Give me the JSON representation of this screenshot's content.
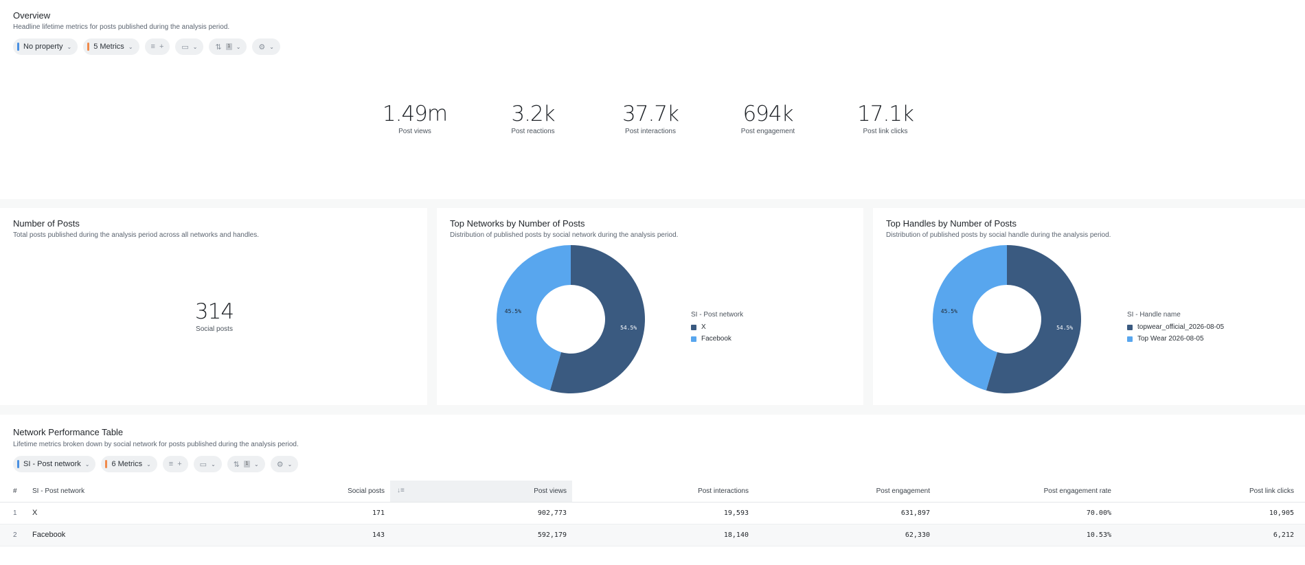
{
  "overview": {
    "title": "Overview",
    "subtitle": "Headline lifetime metrics for posts published during the analysis period.",
    "toolbar": {
      "property_label": "No property",
      "metrics_label": "5 Metrics",
      "plus": "+"
    },
    "kpis": [
      {
        "value": "1.49m",
        "label": "Post views"
      },
      {
        "value": "3.2k",
        "label": "Post reactions"
      },
      {
        "value": "37.7k",
        "label": "Post interactions"
      },
      {
        "value": "694k",
        "label": "Post engagement"
      },
      {
        "value": "17.1k",
        "label": "Post link clicks"
      }
    ]
  },
  "posts_card": {
    "title": "Number of Posts",
    "subtitle": "Total posts published during the analysis period across all networks and handles.",
    "value": "314",
    "label": "Social posts"
  },
  "networks_card": {
    "title": "Top Networks by Number of Posts",
    "subtitle": "Distribution of published posts by social network during the analysis period.",
    "legend_title": "SI - Post network",
    "legend": [
      "X",
      "Facebook"
    ]
  },
  "handles_card": {
    "title": "Top Handles by Number of Posts",
    "subtitle": "Distribution of published posts by social handle during the analysis period.",
    "legend_title": "SI - Handle name",
    "legend": [
      "topwear_official_2026-08-05",
      "Top Wear 2026-08-05"
    ]
  },
  "chart_data": [
    {
      "type": "pie",
      "categories": [
        "X",
        "Facebook"
      ],
      "values": [
        54.5,
        45.5
      ],
      "labels": [
        "54.5%",
        "45.5%"
      ],
      "colors": [
        "#3a5a80",
        "#58a6ee"
      ],
      "legend_title": "SI - Post network"
    },
    {
      "type": "pie",
      "categories": [
        "topwear_official_2026-08-05",
        "Top Wear 2026-08-05"
      ],
      "values": [
        54.5,
        45.5
      ],
      "labels": [
        "54.5%",
        "45.5%"
      ],
      "colors": [
        "#3a5a80",
        "#58a6ee"
      ],
      "legend_title": "SI - Handle name"
    }
  ],
  "table_card": {
    "title": "Network Performance Table",
    "subtitle": "Lifetime metrics broken down by social network for posts published during the analysis period.",
    "toolbar": {
      "dimension_label": "SI - Post network",
      "metrics_label": "6 Metrics",
      "plus": "+"
    },
    "columns": [
      "#",
      "SI - Post network",
      "Social posts",
      "Post views",
      "Post interactions",
      "Post engagement",
      "Post engagement rate",
      "Post link clicks"
    ],
    "rows": [
      [
        "1",
        "X",
        "171",
        "902,773",
        "19,593",
        "631,897",
        "70.00%",
        "10,905"
      ],
      [
        "2",
        "Facebook",
        "143",
        "592,179",
        "18,140",
        "62,330",
        "10.53%",
        "6,212"
      ]
    ]
  },
  "colors": {
    "dark_slice": "#3a5a80",
    "light_slice": "#58a6ee",
    "accent_blue": "#4a90e2",
    "accent_orange": "#f08a4b"
  }
}
